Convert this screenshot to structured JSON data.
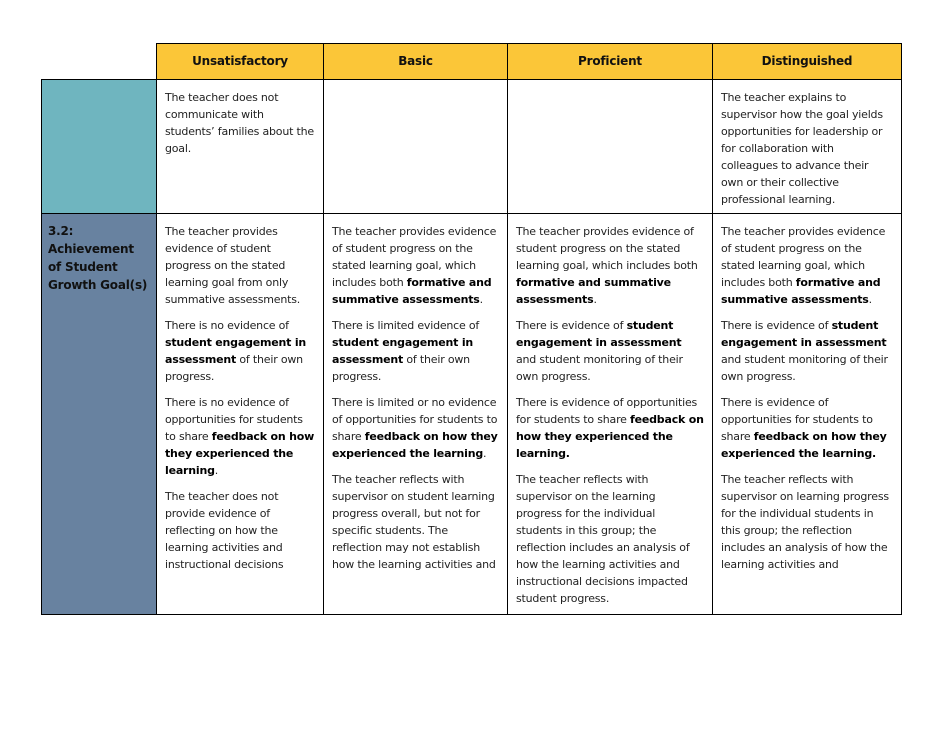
{
  "header": {
    "columns": [
      "Unsatisfactory",
      "Basic",
      "Proficient",
      "Distinguished"
    ]
  },
  "colors": {
    "header": "#fbc638",
    "row1_label": "#6fb5bf",
    "row2_label": "#6882a0"
  },
  "rows": [
    {
      "label": "",
      "cells": [
        [
          [
            {
              "t": "The teacher does not communicate with students’ families about the goal."
            }
          ]
        ],
        [],
        [],
        [
          [
            {
              "t": "The teacher explains to supervisor how the goal yields opportunities for leadership or for collaboration with colleagues to advance their own or their collective professional learning."
            }
          ]
        ]
      ]
    },
    {
      "label": "3.2: Achievement of Student Growth Goal(s)",
      "cells": [
        [
          [
            {
              "t": "The teacher provides evidence of student progress on the stated learning goal from only summative assessments."
            }
          ],
          [
            {
              "t": "There is no evidence of "
            },
            {
              "t": "student engagement in assessment",
              "b": true
            },
            {
              "t": " of their own progress."
            }
          ],
          [
            {
              "t": "There is no evidence of opportunities for students to share "
            },
            {
              "t": "feedback on how they experienced the learning",
              "b": true
            },
            {
              "t": "."
            }
          ],
          [
            {
              "t": "The teacher does not provide evidence of reflecting on how the learning activities and instructional decisions"
            }
          ]
        ],
        [
          [
            {
              "t": "The teacher provides evidence of student progress on the stated learning goal, which includes both "
            },
            {
              "t": "formative and summative assessments",
              "b": true
            },
            {
              "t": "."
            }
          ],
          [
            {
              "t": "There is limited evidence of "
            },
            {
              "t": "student engagement in assessment",
              "b": true
            },
            {
              "t": " of their own progress."
            }
          ],
          [
            {
              "t": "There is limited or no evidence of opportunities for students to share "
            },
            {
              "t": "feedback on how they experienced the learning",
              "b": true
            },
            {
              "t": "."
            }
          ],
          [
            {
              "t": "The teacher reflects with supervisor on student learning progress overall, but not for specific students. The reflection may not establish how the learning activities and"
            }
          ]
        ],
        [
          [
            {
              "t": "The teacher provides evidence of student progress on the stated learning goal, which includes both "
            },
            {
              "t": "formative and summative assessments",
              "b": true
            },
            {
              "t": "."
            }
          ],
          [
            {
              "t": "There is evidence of "
            },
            {
              "t": "student engagement in assessment",
              "b": true
            },
            {
              "t": " and student monitoring of their own progress."
            }
          ],
          [
            {
              "t": "There is evidence of opportunities for students to share "
            },
            {
              "t": "feedback on how they experienced the learning.",
              "b": true
            }
          ],
          [
            {
              "t": "The teacher reflects with supervisor on the learning progress for the individual students in this group; the reflection includes an analysis of how the learning activities and instructional decisions impacted student progress."
            }
          ]
        ],
        [
          [
            {
              "t": "The teacher provides evidence of student progress on the stated learning goal, which includes both "
            },
            {
              "t": "formative and summative assessments",
              "b": true
            },
            {
              "t": "."
            }
          ],
          [
            {
              "t": "There is evidence of "
            },
            {
              "t": "student engagement in assessment",
              "b": true
            },
            {
              "t": " and student monitoring of their own progress."
            }
          ],
          [
            {
              "t": "There is evidence of opportunities for students to share "
            },
            {
              "t": "feedback on how they experienced the learning.",
              "b": true
            }
          ],
          [
            {
              "t": "The teacher reflects with supervisor on learning progress for the individual students in this group; the reflection includes an analysis of how the learning activities and"
            }
          ]
        ]
      ]
    }
  ]
}
